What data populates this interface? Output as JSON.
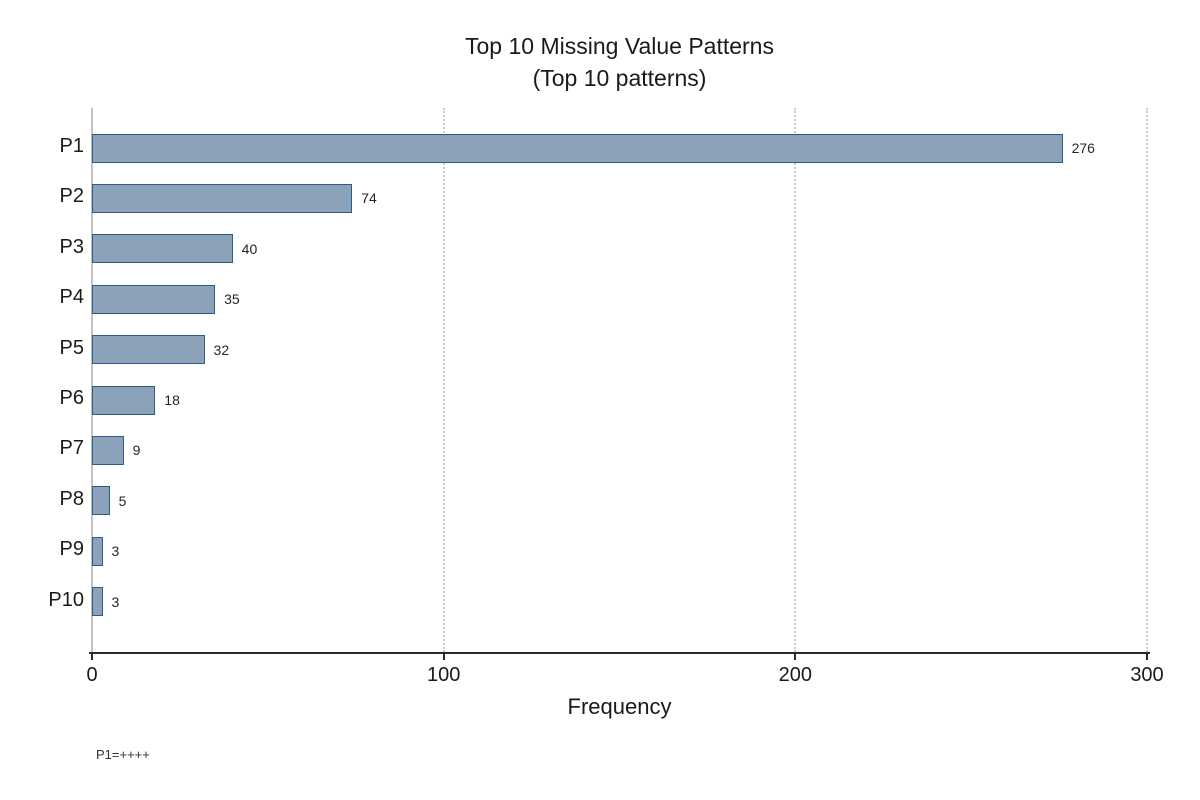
{
  "chart_data": {
    "type": "bar",
    "orientation": "horizontal",
    "title": "Top 10 Missing Value Patterns",
    "subtitle": "(Top 10 patterns)",
    "xlabel": "Frequency",
    "ylabel": "",
    "categories": [
      "P1",
      "P2",
      "P3",
      "P4",
      "P5",
      "P6",
      "P7",
      "P8",
      "P9",
      "P10"
    ],
    "values": [
      276,
      74,
      40,
      35,
      32,
      18,
      9,
      5,
      3,
      3
    ],
    "xlim": [
      0,
      300
    ],
    "xticks": [
      0,
      100,
      200,
      300
    ],
    "grid": "vertical-dotted",
    "legend": "none",
    "bar_fill_color": "#8ca2b8",
    "bar_edge_color": "#2c5c8a",
    "footnote": "P1=++++"
  }
}
